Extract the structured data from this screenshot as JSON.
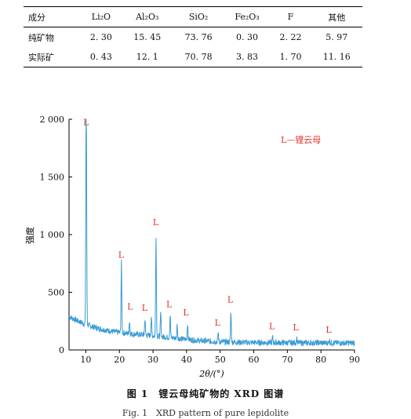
{
  "table": {
    "headers": [
      "成分",
      "Li₂O",
      "Al₂O₃",
      "SiO₂",
      "Fe₂O₃",
      "F",
      "其他"
    ],
    "rows": [
      [
        "纯矿物",
        "2. 30",
        "15. 45",
        "73. 76",
        "0. 30",
        "2. 22",
        "5. 97"
      ],
      [
        "实际矿",
        "0. 43",
        "12. 1",
        "70. 78",
        "3. 83",
        "1. 70",
        "11. 16"
      ]
    ]
  },
  "chart_data": {
    "type": "line",
    "xlabel": "2θ/(°)",
    "ylabel": "强度",
    "xlim": [
      5,
      90
    ],
    "ylim": [
      0,
      2000
    ],
    "xticks": [
      "10",
      "20",
      "30",
      "40",
      "50",
      "60",
      "70",
      "80",
      "90"
    ],
    "yticks": [
      "0",
      "500",
      "1 000",
      "1 500",
      "2 000"
    ],
    "legend_text": "L—锂云母",
    "legend_position": "top-right",
    "line_color": "#3a9bd5",
    "label_color": "#e0302a",
    "grid": false,
    "peak_labels": [
      {
        "x": 10.1,
        "y": 1950,
        "text": "L"
      },
      {
        "x": 20.5,
        "y": 800,
        "text": "L"
      },
      {
        "x": 23.2,
        "y": 350,
        "text": "L"
      },
      {
        "x": 27.5,
        "y": 340,
        "text": "L"
      },
      {
        "x": 30.8,
        "y": 1080,
        "text": "L"
      },
      {
        "x": 34.8,
        "y": 370,
        "text": "L"
      },
      {
        "x": 39.8,
        "y": 300,
        "text": "L"
      },
      {
        "x": 49.2,
        "y": 210,
        "text": "L"
      },
      {
        "x": 53.0,
        "y": 410,
        "text": "L"
      },
      {
        "x": 65.4,
        "y": 180,
        "text": "L"
      },
      {
        "x": 72.5,
        "y": 170,
        "text": "L"
      },
      {
        "x": 82.3,
        "y": 150,
        "text": "L"
      }
    ],
    "peaks": [
      {
        "x": 10.1,
        "y": 1920
      },
      {
        "x": 10.2,
        "y": 700
      },
      {
        "x": 20.6,
        "y": 760
      },
      {
        "x": 23.0,
        "y": 250
      },
      {
        "x": 27.6,
        "y": 270
      },
      {
        "x": 29.5,
        "y": 280
      },
      {
        "x": 30.9,
        "y": 1010
      },
      {
        "x": 32.3,
        "y": 320
      },
      {
        "x": 35.1,
        "y": 300
      },
      {
        "x": 37.2,
        "y": 220
      },
      {
        "x": 40.3,
        "y": 230
      },
      {
        "x": 49.4,
        "y": 150
      },
      {
        "x": 53.2,
        "y": 330
      },
      {
        "x": 65.6,
        "y": 110
      },
      {
        "x": 72.8,
        "y": 100
      },
      {
        "x": 82.5,
        "y": 90
      }
    ]
  },
  "caption": {
    "figure": "图 1　锂云母纯矿物的 XRD 图谱",
    "subtitle": "Fig. 1　XRD pattern of pure lepidolite"
  }
}
